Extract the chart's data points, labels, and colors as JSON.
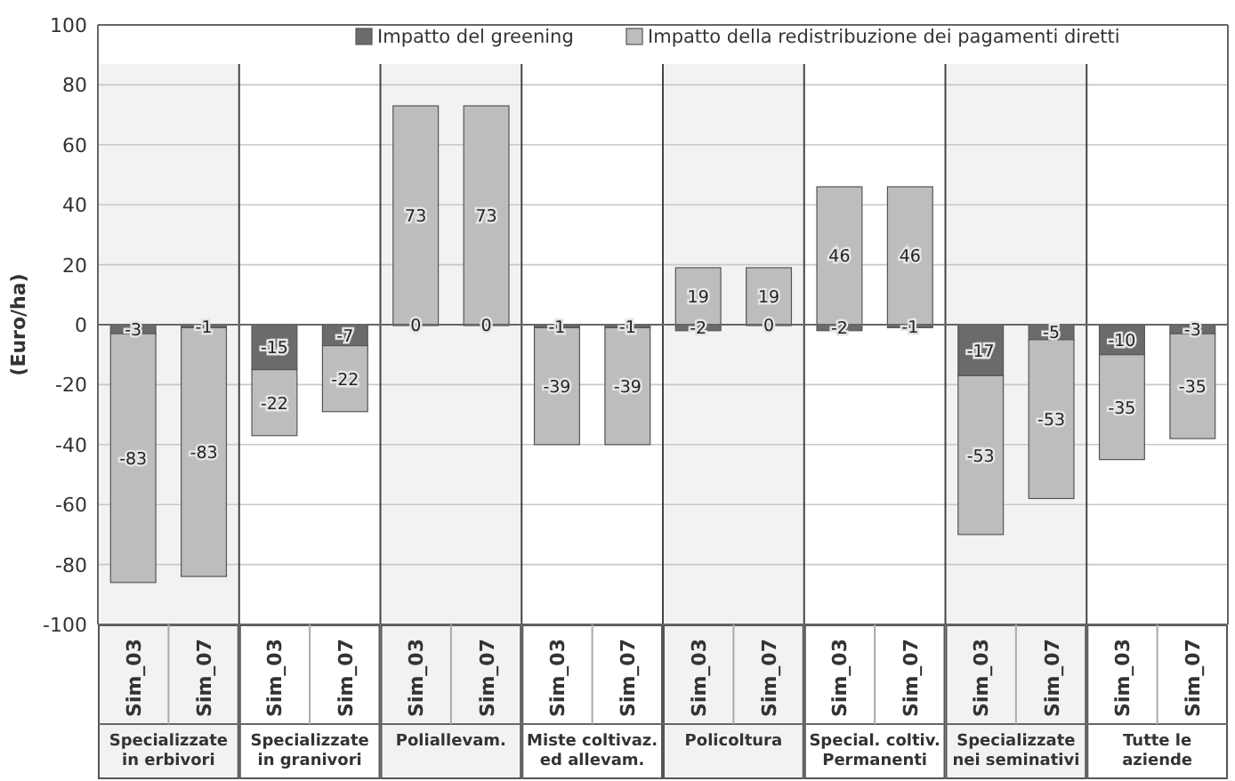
{
  "chart_data": {
    "type": "bar",
    "stacked": true,
    "ylabel": "(Euro/ha)",
    "categories": [
      "Sim_03",
      "Sim_07",
      "Sim_03",
      "Sim_07",
      "Sim_03",
      "Sim_07",
      "Sim_03",
      "Sim_07",
      "Sim_03",
      "Sim_07",
      "Sim_03",
      "Sim_07",
      "Sim_03",
      "Sim_07",
      "Sim_03",
      "Sim_07"
    ],
    "series": [
      {
        "name": "Impatto del greening",
        "color": "#6b6b6b",
        "values": [
          -3,
          -1,
          -15,
          -7,
          0,
          0,
          -1,
          -1,
          -2,
          0,
          -2,
          -1,
          -17,
          -5,
          -10,
          -3
        ]
      },
      {
        "name": "Impatto della redistribuzione dei pagamenti diretti",
        "color": "#bdbdbd",
        "values": [
          -83,
          -83,
          -22,
          -22,
          73,
          73,
          -39,
          -39,
          19,
          19,
          46,
          46,
          -53,
          -53,
          -35,
          -35
        ]
      }
    ],
    "annotations": [
      "Specializzate\nin erbivori",
      "Specializzate\nin granivori",
      "Poliallevam.",
      "Miste coltivaz.\ned allevam.",
      "Policoltura",
      "Special. coltiv.\nPermanenti",
      "Specializzate\nnei seminativi",
      "Tutte le\naziende"
    ],
    "ylim": [
      -100,
      100
    ],
    "yticks": [
      -100,
      -80,
      -60,
      -40,
      -20,
      0,
      20,
      40,
      60,
      80,
      100
    ],
    "grid": "y",
    "legend": "top",
    "data_labels": true
  }
}
